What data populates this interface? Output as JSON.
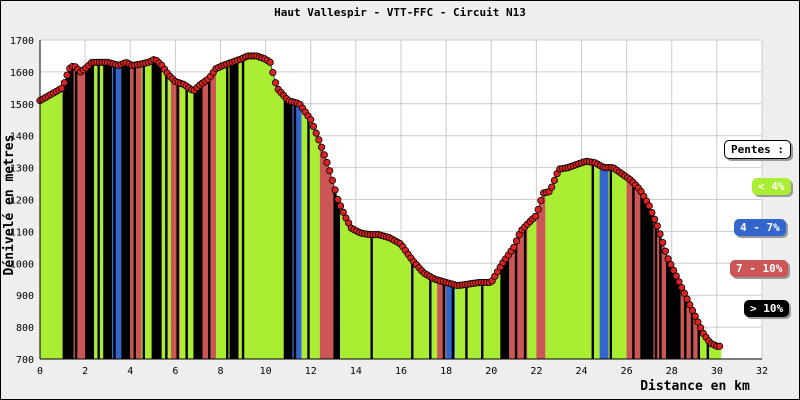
{
  "chart_data": {
    "type": "area",
    "title": "Haut Vallespir - VTT-FFC - Circuit N13",
    "xlabel": "Distance en km",
    "ylabel": "Dénivelé en metres",
    "xlim": [
      0,
      32
    ],
    "ylim": [
      700,
      1700
    ],
    "xticks": [
      0,
      2,
      4,
      6,
      8,
      10,
      12,
      14,
      16,
      18,
      20,
      22,
      24,
      26,
      28,
      30,
      32
    ],
    "yticks": [
      700,
      800,
      900,
      1000,
      1100,
      1200,
      1300,
      1400,
      1500,
      1600,
      1700
    ],
    "profile": {
      "x": [
        0,
        0.5,
        1.0,
        1.3,
        1.5,
        1.8,
        2.0,
        2.3,
        2.6,
        3.0,
        3.5,
        3.8,
        4.1,
        4.5,
        4.8,
        5.1,
        5.4,
        5.7,
        6.0,
        6.4,
        6.8,
        7.1,
        7.5,
        7.8,
        8.1,
        8.5,
        8.9,
        9.2,
        9.6,
        10.0,
        10.2,
        10.5,
        11.0,
        11.5,
        12.0,
        12.4,
        12.8,
        13.0,
        13.2,
        13.5,
        13.8,
        14.2,
        14.6,
        15.0,
        15.5,
        16.0,
        16.5,
        17.0,
        17.5,
        18.0,
        18.5,
        19.0,
        19.5,
        20.0,
        20.5,
        21.0,
        21.3,
        21.7,
        22.0,
        22.3,
        22.6,
        23.0,
        23.4,
        23.8,
        24.2,
        24.6,
        25.0,
        25.4,
        25.8,
        26.2,
        26.6,
        27.0,
        27.4,
        27.8,
        28.2,
        28.6,
        29.0,
        29.4,
        29.7,
        30.0,
        30.2
      ],
      "y": [
        1510,
        1530,
        1550,
        1610,
        1620,
        1600,
        1610,
        1630,
        1630,
        1630,
        1620,
        1630,
        1620,
        1625,
        1630,
        1640,
        1620,
        1590,
        1570,
        1560,
        1540,
        1560,
        1580,
        1610,
        1620,
        1630,
        1640,
        1650,
        1650,
        1640,
        1630,
        1550,
        1510,
        1500,
        1450,
        1380,
        1300,
        1250,
        1200,
        1150,
        1110,
        1095,
        1090,
        1090,
        1080,
        1060,
        1010,
        970,
        950,
        940,
        930,
        935,
        940,
        940,
        1000,
        1050,
        1100,
        1130,
        1150,
        1220,
        1225,
        1295,
        1300,
        1310,
        1320,
        1315,
        1300,
        1300,
        1280,
        1260,
        1230,
        1180,
        1110,
        1020,
        960,
        900,
        840,
        780,
        750,
        740,
        740
      ]
    },
    "bands": [
      {
        "from": 0,
        "to": 1,
        "cls": 0
      },
      {
        "from": 1,
        "to": 1.5,
        "cls": 3
      },
      {
        "from": 1.5,
        "to": 2.0,
        "cls": 2
      },
      {
        "from": 2.0,
        "to": 2.4,
        "cls": 3
      },
      {
        "from": 2.4,
        "to": 2.8,
        "cls": 0
      },
      {
        "from": 2.8,
        "to": 3.2,
        "cls": 3
      },
      {
        "from": 3.2,
        "to": 3.6,
        "cls": 1
      },
      {
        "from": 3.6,
        "to": 4.0,
        "cls": 3
      },
      {
        "from": 4.0,
        "to": 4.5,
        "cls": 2
      },
      {
        "from": 4.5,
        "to": 5.0,
        "cls": 0
      },
      {
        "from": 5.0,
        "to": 5.4,
        "cls": 3
      },
      {
        "from": 5.4,
        "to": 5.8,
        "cls": 0
      },
      {
        "from": 5.8,
        "to": 6.2,
        "cls": 2
      },
      {
        "from": 6.2,
        "to": 6.8,
        "cls": 0
      },
      {
        "from": 6.8,
        "to": 7.2,
        "cls": 3
      },
      {
        "from": 7.2,
        "to": 7.8,
        "cls": 2
      },
      {
        "from": 7.8,
        "to": 8.4,
        "cls": 0
      },
      {
        "from": 8.4,
        "to": 8.8,
        "cls": 3
      },
      {
        "from": 8.8,
        "to": 10.8,
        "cls": 0
      },
      {
        "from": 10.8,
        "to": 11.2,
        "cls": 3
      },
      {
        "from": 11.2,
        "to": 11.6,
        "cls": 1
      },
      {
        "from": 11.6,
        "to": 12.4,
        "cls": 0
      },
      {
        "from": 12.4,
        "to": 13.0,
        "cls": 2
      },
      {
        "from": 13.0,
        "to": 13.3,
        "cls": 3
      },
      {
        "from": 13.3,
        "to": 17.6,
        "cls": 0
      },
      {
        "from": 17.6,
        "to": 18.0,
        "cls": 2
      },
      {
        "from": 18.0,
        "to": 18.4,
        "cls": 1
      },
      {
        "from": 18.4,
        "to": 20.4,
        "cls": 0
      },
      {
        "from": 20.4,
        "to": 20.8,
        "cls": 3
      },
      {
        "from": 20.8,
        "to": 21.6,
        "cls": 2
      },
      {
        "from": 21.6,
        "to": 22.0,
        "cls": 0
      },
      {
        "from": 22.0,
        "to": 22.4,
        "cls": 2
      },
      {
        "from": 22.4,
        "to": 24.8,
        "cls": 0
      },
      {
        "from": 24.8,
        "to": 25.2,
        "cls": 1
      },
      {
        "from": 25.2,
        "to": 26.0,
        "cls": 0
      },
      {
        "from": 26.0,
        "to": 26.6,
        "cls": 2
      },
      {
        "from": 26.6,
        "to": 27.2,
        "cls": 3
      },
      {
        "from": 27.2,
        "to": 27.8,
        "cls": 2
      },
      {
        "from": 27.8,
        "to": 28.4,
        "cls": 3
      },
      {
        "from": 28.4,
        "to": 29.2,
        "cls": 2
      },
      {
        "from": 29.2,
        "to": 30.2,
        "cls": 0
      }
    ],
    "stripes": [
      1.1,
      1.3,
      1.6,
      2.1,
      2.3,
      2.6,
      3.0,
      3.3,
      3.8,
      4.2,
      4.6,
      5.0,
      5.2,
      5.6,
      6.1,
      6.5,
      7.0,
      7.5,
      8.3,
      9.0,
      10.9,
      11.3,
      11.9,
      13.2,
      14.7,
      16.5,
      17.3,
      17.9,
      18.3,
      18.9,
      19.6,
      20.6,
      21.1,
      21.5,
      24.5,
      25.3,
      26.3,
      26.8,
      27.0,
      27.3,
      27.5,
      27.8,
      28.0,
      28.3,
      28.6,
      28.9,
      29.2,
      29.6
    ],
    "legend_title": "Pentes :",
    "legend": [
      {
        "label": "< 4%",
        "color": "#aaee33"
      },
      {
        "label": "4 - 7%",
        "color": "#3366cc"
      },
      {
        "label": "7 - 10%",
        "color": "#cc5555"
      },
      {
        "label": "> 10%",
        "color": "#000000"
      }
    ],
    "colors": {
      "point": "#dd2222",
      "grid": "#cccccc"
    }
  }
}
